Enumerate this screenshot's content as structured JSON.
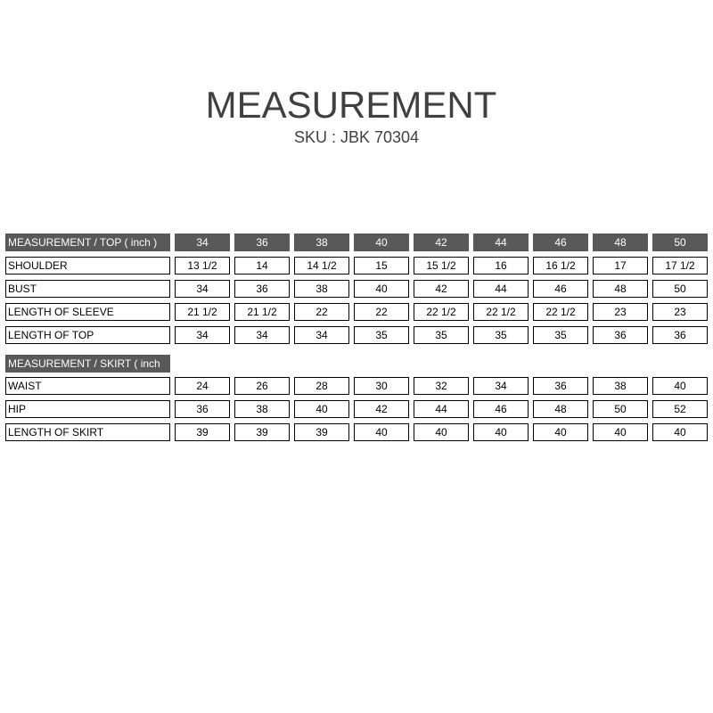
{
  "title": "MEASUREMENT",
  "sku": "SKU : JBK 70304",
  "top": {
    "header": "MEASUREMENT / TOP ( inch )",
    "sizes": [
      "34",
      "36",
      "38",
      "40",
      "42",
      "44",
      "46",
      "48",
      "50"
    ],
    "rows": [
      {
        "label": "SHOULDER",
        "values": [
          "13 1/2",
          "14",
          "14 1/2",
          "15",
          "15 1/2",
          "16",
          "16 1/2",
          "17",
          "17 1/2"
        ]
      },
      {
        "label": "BUST",
        "values": [
          "34",
          "36",
          "38",
          "40",
          "42",
          "44",
          "46",
          "48",
          "50"
        ]
      },
      {
        "label": "LENGTH OF SLEEVE",
        "values": [
          "21 1/2",
          "21 1/2",
          "22",
          "22",
          "22 1/2",
          "22 1/2",
          "22 1/2",
          "23",
          "23"
        ]
      },
      {
        "label": "LENGTH OF TOP",
        "values": [
          "34",
          "34",
          "34",
          "35",
          "35",
          "35",
          "35",
          "36",
          "36"
        ]
      }
    ]
  },
  "skirt": {
    "header": "MEASUREMENT / SKIRT ( inch",
    "rows": [
      {
        "label": "WAIST",
        "values": [
          "24",
          "26",
          "28",
          "30",
          "32",
          "34",
          "36",
          "38",
          "40"
        ]
      },
      {
        "label": "HIP",
        "values": [
          "36",
          "38",
          "40",
          "42",
          "44",
          "46",
          "48",
          "50",
          "52"
        ]
      },
      {
        "label": "LENGTH OF SKIRT",
        "values": [
          "39",
          "39",
          "39",
          "40",
          "40",
          "40",
          "40",
          "40",
          "40"
        ]
      }
    ]
  }
}
